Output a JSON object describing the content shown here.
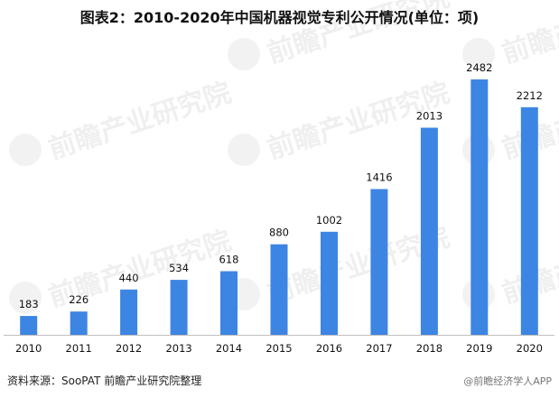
{
  "chart_data": {
    "type": "bar",
    "title": "图表2：2010-2020年中国机器视觉专利公开情况(单位：项)",
    "categories": [
      "2010",
      "2011",
      "2012",
      "2013",
      "2014",
      "2015",
      "2016",
      "2017",
      "2018",
      "2019",
      "2020"
    ],
    "values": [
      183,
      226,
      440,
      534,
      618,
      880,
      1002,
      1416,
      2013,
      2482,
      2212
    ],
    "bar_color": "#3d85e3",
    "ylim": [
      0,
      2700
    ],
    "grid": false,
    "legend": "none",
    "data_labels": true
  },
  "source": "资料来源：SooPAT   前瞻产业研究院整理",
  "brand": "@前瞻经济学人APP",
  "watermark": "前瞻产业研究院"
}
